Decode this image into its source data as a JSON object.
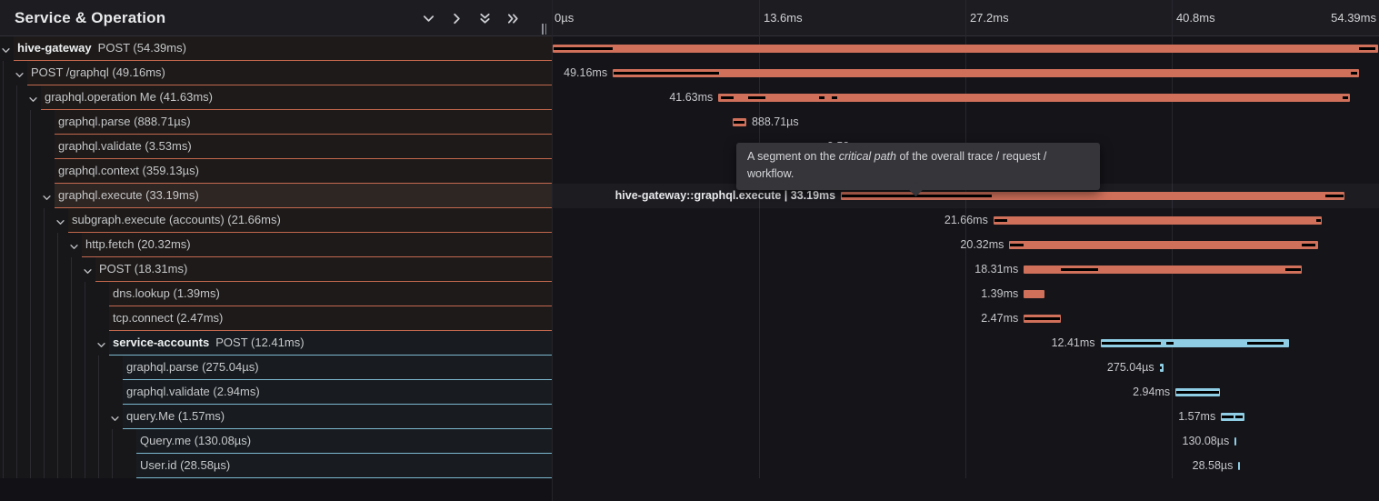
{
  "header": {
    "title": "Service & Operation",
    "icon_buttons": [
      "chevron-down",
      "chevron-right",
      "double-chevron-down",
      "double-chevron-right"
    ],
    "resize_handle": "drag-handle"
  },
  "timeline_axis": {
    "ticks": [
      {
        "label": "0µs",
        "ms": 0
      },
      {
        "label": "13.6ms",
        "ms": 13.6
      },
      {
        "label": "27.2ms",
        "ms": 27.2
      },
      {
        "label": "40.8ms",
        "ms": 40.8
      },
      {
        "label": "54.39ms",
        "ms": 54.39
      }
    ],
    "total_ms": 54.39
  },
  "tooltip": {
    "prefix": "A segment on the ",
    "emphasis": "critical path",
    "suffix": " of the overall trace / request / workflow."
  },
  "colors": {
    "span_salmon": "#d0705a",
    "span_blue": "#8ecde4",
    "critical": "#000000",
    "row_border_salmon": "#c4684e",
    "row_border_blue": "#7cb8cf"
  },
  "trace": {
    "hovered_span": "hive-gateway::graphql.execute",
    "spans": [
      {
        "service": "hive-gateway",
        "text": "POST (54.39ms)",
        "name": "POST",
        "level": 0,
        "color": "salmon",
        "expandable": true,
        "hovered": false,
        "start_ms": 0,
        "duration_ms": 54.39,
        "bar_label": null,
        "label_side": null,
        "critical": [
          [
            0,
            3.95
          ],
          [
            53.16,
            54.25
          ]
        ]
      },
      {
        "service": null,
        "text": "POST /graphql (49.16ms)",
        "name": "POST /graphql",
        "level": 1,
        "color": "salmon",
        "expandable": true,
        "hovered": false,
        "start_ms": 3.96,
        "duration_ms": 49.16,
        "bar_label": "49.16ms",
        "label_side": "left",
        "critical": [
          [
            4.0,
            10.95
          ],
          [
            52.6,
            53.05
          ]
        ]
      },
      {
        "service": null,
        "text": "graphql.operation Me (41.63ms)",
        "name": "graphql.operation Me",
        "level": 2,
        "color": "salmon",
        "expandable": true,
        "hovered": false,
        "start_ms": 10.92,
        "duration_ms": 41.63,
        "bar_label": "41.63ms",
        "label_side": "left",
        "critical": [
          [
            11.08,
            11.9
          ],
          [
            12.9,
            14.0
          ],
          [
            17.55,
            17.9
          ],
          [
            18.4,
            18.75
          ],
          [
            52.05,
            52.45
          ]
        ]
      },
      {
        "service": null,
        "text": "graphql.parse (888.71µs)",
        "name": "graphql.parse",
        "level": 3,
        "color": "salmon",
        "expandable": false,
        "hovered": false,
        "start_ms": 11.87,
        "duration_ms": 0.889,
        "bar_label": "888.71µs",
        "label_side": "right",
        "critical": [
          [
            11.95,
            12.62
          ]
        ]
      },
      {
        "service": null,
        "text": "graphql.validate (3.53ms)",
        "name": "graphql.validate",
        "level": 3,
        "color": "salmon",
        "expandable": false,
        "hovered": false,
        "start_ms": 14.2,
        "duration_ms": 3.53,
        "bar_label": "3.53ms",
        "label_side": "right",
        "critical": [
          [
            14.32,
            17.58
          ]
        ]
      },
      {
        "service": null,
        "text": "graphql.context (359.13µs)",
        "name": "graphql.context",
        "level": 3,
        "color": "salmon",
        "expandable": false,
        "hovered": false,
        "start_ms": 17.8,
        "duration_ms": 0.359,
        "bar_label": "359.13µs",
        "label_side": "right",
        "critical": []
      },
      {
        "service": null,
        "text": "graphql.execute (33.19ms)",
        "name": "graphql.execute",
        "level": 3,
        "color": "salmon",
        "expandable": true,
        "hovered": true,
        "start_ms": 19.0,
        "duration_ms": 33.19,
        "bar_label": "hive-gateway::graphql.execute | 33.19ms",
        "label_side": "left",
        "critical": [
          [
            19.05,
            28.95
          ],
          [
            50.95,
            52.1
          ]
        ]
      },
      {
        "service": null,
        "text": "subgraph.execute (accounts) (21.66ms)",
        "name": "subgraph.execute (accounts)",
        "level": 4,
        "color": "salmon",
        "expandable": true,
        "hovered": false,
        "start_ms": 29.05,
        "duration_ms": 21.66,
        "bar_label": "21.66ms",
        "label_side": "left",
        "critical": [
          [
            29.1,
            29.95
          ],
          [
            50.3,
            50.65
          ]
        ]
      },
      {
        "service": null,
        "text": "http.fetch (20.32ms)",
        "name": "http.fetch",
        "level": 5,
        "color": "salmon",
        "expandable": true,
        "hovered": false,
        "start_ms": 30.1,
        "duration_ms": 20.32,
        "bar_label": "20.32ms",
        "label_side": "left",
        "critical": [
          [
            30.12,
            31.0
          ],
          [
            49.35,
            50.3
          ]
        ]
      },
      {
        "service": null,
        "text": "POST (18.31ms)",
        "name": "POST",
        "level": 6,
        "color": "salmon",
        "expandable": true,
        "hovered": false,
        "start_ms": 31.05,
        "duration_ms": 18.31,
        "bar_label": "18.31ms",
        "label_side": "left",
        "critical": [
          [
            33.5,
            35.95
          ],
          [
            48.3,
            49.3
          ]
        ]
      },
      {
        "service": null,
        "text": "dns.lookup (1.39ms)",
        "name": "dns.lookup",
        "level": 7,
        "color": "salmon",
        "expandable": false,
        "hovered": false,
        "start_ms": 31.05,
        "duration_ms": 1.39,
        "bar_label": "1.39ms",
        "label_side": "left",
        "critical": []
      },
      {
        "service": null,
        "text": "tcp.connect (2.47ms)",
        "name": "tcp.connect",
        "level": 7,
        "color": "salmon",
        "expandable": false,
        "hovered": false,
        "start_ms": 31.05,
        "duration_ms": 2.47,
        "bar_label": "2.47ms",
        "label_side": "left",
        "critical": [
          [
            31.1,
            33.45
          ]
        ]
      },
      {
        "service": "service-accounts",
        "text": "POST (12.41ms)",
        "name": "POST",
        "level": 7,
        "color": "blue",
        "expandable": true,
        "hovered": false,
        "start_ms": 36.1,
        "duration_ms": 12.41,
        "bar_label": "12.41ms",
        "label_side": "left",
        "critical": [
          [
            36.2,
            40.1
          ],
          [
            40.45,
            40.9
          ],
          [
            45.75,
            48.2
          ]
        ]
      },
      {
        "service": null,
        "text": "graphql.parse (275.04µs)",
        "name": "graphql.parse",
        "level": 8,
        "color": "blue",
        "expandable": false,
        "hovered": false,
        "start_ms": 40.0,
        "duration_ms": 0.275,
        "bar_label": "275.04µs",
        "label_side": "left",
        "critical": [
          [
            40.03,
            40.17
          ]
        ]
      },
      {
        "service": null,
        "text": "graphql.validate (2.94ms)",
        "name": "graphql.validate",
        "level": 8,
        "color": "blue",
        "expandable": false,
        "hovered": false,
        "start_ms": 41.05,
        "duration_ms": 2.94,
        "bar_label": "2.94ms",
        "label_side": "left",
        "critical": [
          [
            41.12,
            43.92
          ]
        ]
      },
      {
        "service": null,
        "text": "query.Me (1.57ms)",
        "name": "query.Me",
        "level": 8,
        "color": "blue",
        "expandable": true,
        "hovered": false,
        "start_ms": 44.05,
        "duration_ms": 1.57,
        "bar_label": "1.57ms",
        "label_side": "left",
        "critical": [
          [
            44.12,
            44.85
          ],
          [
            45.0,
            45.45
          ]
        ]
      },
      {
        "service": null,
        "text": "Query.me (130.08µs)",
        "name": "Query.me",
        "level": 9,
        "color": "blue",
        "expandable": false,
        "hovered": false,
        "start_ms": 44.95,
        "duration_ms": 0.13,
        "bar_label": "130.08µs",
        "label_side": "left",
        "critical": []
      },
      {
        "service": null,
        "text": "User.id (28.58µs)",
        "name": "User.id",
        "level": 9,
        "color": "blue",
        "expandable": false,
        "hovered": false,
        "start_ms": 45.2,
        "duration_ms": 0.0286,
        "bar_label": "28.58µs",
        "label_side": "left",
        "critical": []
      }
    ]
  }
}
